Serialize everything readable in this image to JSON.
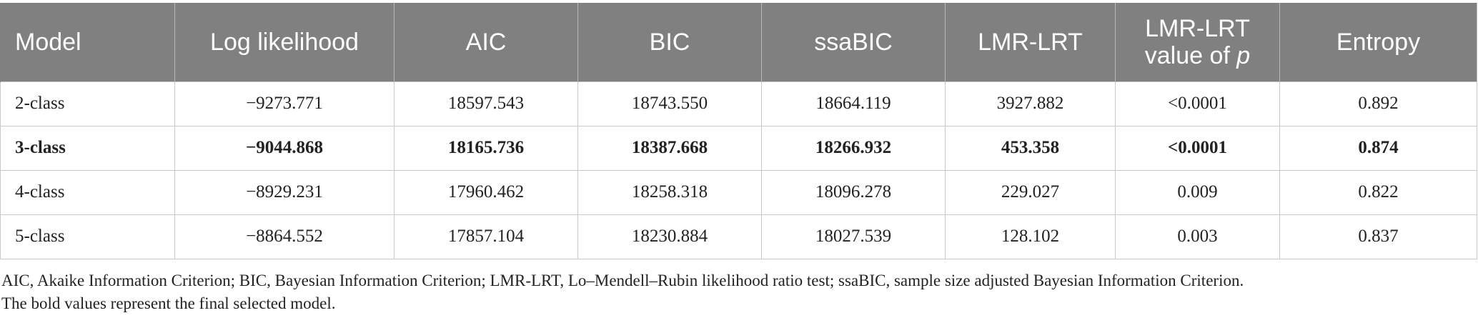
{
  "table": {
    "headers": [
      {
        "label": "Model"
      },
      {
        "label": "Log likelihood"
      },
      {
        "label": "AIC"
      },
      {
        "label": "BIC"
      },
      {
        "label": "ssaBIC"
      },
      {
        "label": "LMR-LRT"
      },
      {
        "label": "LMR-LRT",
        "label2_prefix": "value of ",
        "label2_italic": "p"
      },
      {
        "label": "Entropy"
      }
    ],
    "rows": [
      {
        "bold": false,
        "cells": [
          "2-class",
          "−9273.771",
          "18597.543",
          "18743.550",
          "18664.119",
          "3927.882",
          "<0.0001",
          "0.892"
        ]
      },
      {
        "bold": true,
        "cells": [
          "3-class",
          "−9044.868",
          "18165.736",
          "18387.668",
          "18266.932",
          "453.358",
          "<0.0001",
          "0.874"
        ]
      },
      {
        "bold": false,
        "cells": [
          "4-class",
          "−8929.231",
          "17960.462",
          "18258.318",
          "18096.278",
          "229.027",
          "0.009",
          "0.822"
        ]
      },
      {
        "bold": false,
        "cells": [
          "5-class",
          "−8864.552",
          "17857.104",
          "18230.884",
          "18027.539",
          "128.102",
          "0.003",
          "0.837"
        ]
      }
    ]
  },
  "notes": {
    "abbreviations": "AIC, Akaike Information Criterion; BIC, Bayesian Information Criterion; LMR-LRT, Lo–Mendell–Rubin likelihood ratio test; ssaBIC, sample size adjusted Bayesian Information Criterion.",
    "bold_note": "The bold values represent the final selected model."
  }
}
